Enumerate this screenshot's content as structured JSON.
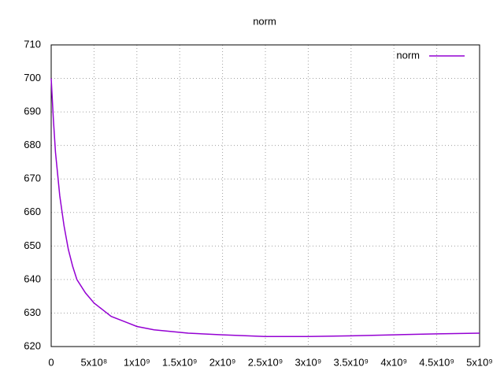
{
  "chart_data": {
    "type": "line",
    "title": "norm",
    "x": [
      0,
      25000000,
      50000000,
      100000000,
      150000000,
      200000000,
      250000000,
      300000000,
      400000000,
      500000000,
      600000000,
      700000000,
      800000000,
      900000000,
      1000000000,
      1200000000,
      1400000000,
      1600000000,
      2000000000,
      2500000000,
      3000000000,
      3500000000,
      4000000000,
      4500000000,
      5000000000
    ],
    "series": [
      {
        "name": "norm",
        "color": "#9400d3",
        "values": [
          700,
          688,
          678,
          665,
          656,
          649,
          644,
          640,
          636,
          633,
          631,
          629,
          628,
          627,
          626,
          625,
          624.5,
          624,
          623.5,
          623,
          623,
          623.2,
          623.5,
          623.8,
          624
        ]
      }
    ],
    "xlim": [
      0,
      5000000000
    ],
    "xticks": [
      0,
      {
        "value": 500000000,
        "label": "5x10⁸"
      },
      {
        "value": 1000000000,
        "label": "1x10⁹"
      },
      {
        "value": 1500000000,
        "label": "1.5x10⁹"
      },
      {
        "value": 2000000000,
        "label": "2x10⁹"
      },
      {
        "value": 2500000000,
        "label": "2.5x10⁹"
      },
      {
        "value": 3000000000,
        "label": "3x10⁹"
      },
      {
        "value": 3500000000,
        "label": "3.5x10⁹"
      },
      {
        "value": 4000000000,
        "label": "4x10⁹"
      },
      {
        "value": 4500000000,
        "label": "4.5x10⁹"
      },
      {
        "value": 5000000000,
        "label": "5x10⁹"
      }
    ],
    "ylim": [
      620,
      710
    ],
    "yticks": [
      620,
      630,
      640,
      650,
      660,
      670,
      680,
      690,
      700,
      710
    ],
    "grid": true,
    "legend": "top-right"
  }
}
